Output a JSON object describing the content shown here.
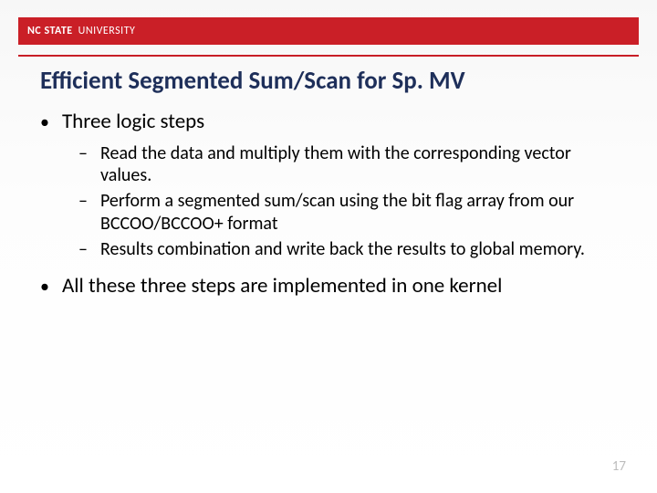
{
  "header": {
    "brand_bold": "NC STATE",
    "brand_light": "UNIVERSITY",
    "bar_color": "#ca1f27",
    "underline_color": "#c81e26"
  },
  "title": {
    "text": "Efficient Segmented Sum/Scan for Sp. MV",
    "color": "#1e2f5a",
    "fontsize": 27
  },
  "bullets": {
    "l1_a": "Three logic steps",
    "l2_a": "Read the data and multiply them with the corresponding vector values.",
    "l2_b": "Perform a segmented sum/scan using the bit flag array from our BCCOO/BCCOO+ format",
    "l2_c": "Results combination  and write back the results to global memory.",
    "l1_b": "All these three steps are implemented in one kernel"
  },
  "page_number": "17",
  "styling": {
    "slide_bg_top": "#f7f7f7",
    "slide_bg_bottom": "#ffffff",
    "text_color": "#000000",
    "page_num_color": "#bdbdbd",
    "l1_fontsize": 23,
    "l2_fontsize": 20,
    "font_family": "Calibri"
  }
}
